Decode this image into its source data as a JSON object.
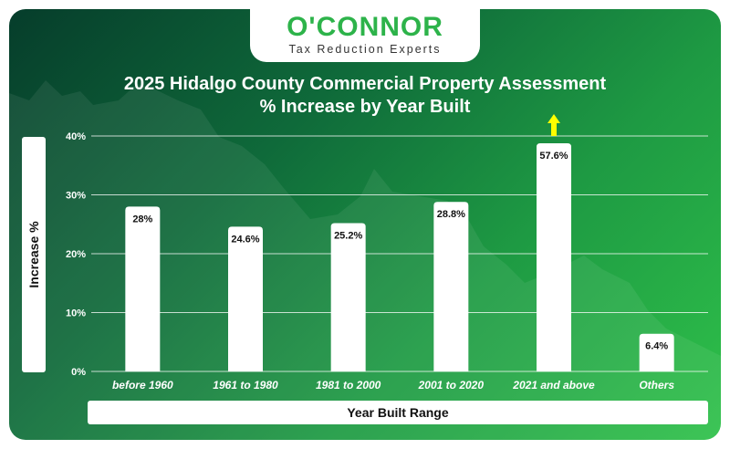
{
  "logo": {
    "name": "O'CONNOR",
    "tagline": "Tax Reduction Experts"
  },
  "colors": {
    "bar": "#ffffff",
    "grid": "#ffffff",
    "arrow": "#ffff00",
    "brand": "#2db34a"
  },
  "chart_data": {
    "type": "bar",
    "title": "2025 Hidalgo County Commercial Property Assessment % Increase by Year Built",
    "title_lines": [
      "2025 Hidalgo County Commercial Property Assessment",
      "% Increase by Year Built"
    ],
    "xlabel": "Year Built Range",
    "ylabel": "Increase %",
    "categories": [
      "before 1960",
      "1961 to 1980",
      "1981 to 2000",
      "2001 to 2020",
      "2021 and above",
      "Others"
    ],
    "values": [
      28,
      24.6,
      25.2,
      28.8,
      57.6,
      6.4
    ],
    "value_labels": [
      "28%",
      "24.6%",
      "25.2%",
      "28.8%",
      "57.6%",
      "6.4%"
    ],
    "ylim": [
      0,
      40
    ],
    "yticks": [
      0,
      10,
      20,
      30,
      40
    ],
    "ytick_labels": [
      "0%",
      "10%",
      "20%",
      "30%",
      "40%"
    ],
    "grid": true,
    "annotations": [
      {
        "category": "2021 and above",
        "mark": "up-arrow",
        "meaning": "value exceeds axis maximum"
      }
    ]
  }
}
